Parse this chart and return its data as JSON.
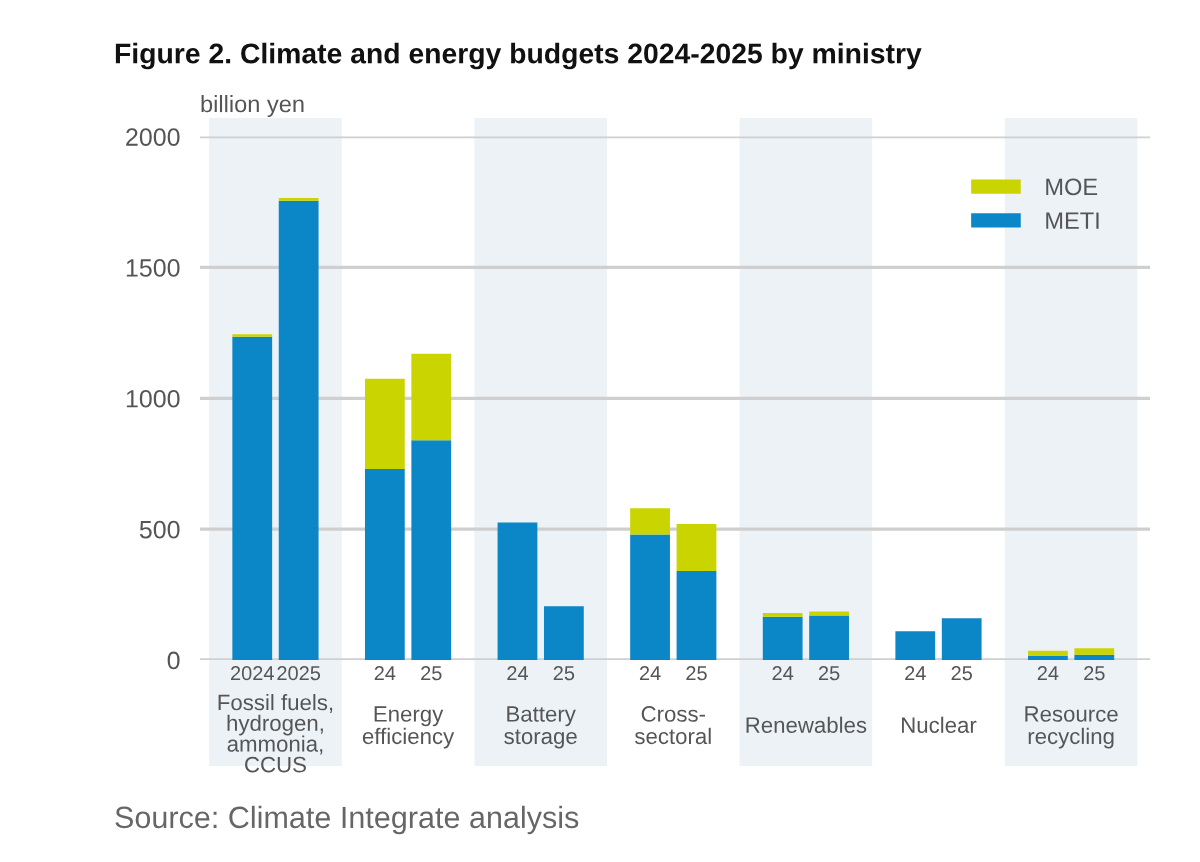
{
  "chart_data": {
    "type": "bar",
    "title": "Figure 2. Climate and energy budgets 2024-2025 by ministry",
    "ylabel": "billion yen",
    "categories": [
      "2024",
      "2025",
      "24",
      "25",
      "24",
      "25",
      "24",
      "25",
      "24",
      "25",
      "24",
      "25",
      "24",
      "25"
    ],
    "series": [
      {
        "name": "METI",
        "color": "#0b86c7",
        "values": [
          1235,
          1755,
          730,
          840,
          525,
          205,
          480,
          340,
          165,
          170,
          110,
          160,
          15,
          20
        ]
      },
      {
        "name": "MOE",
        "color": "#c9d400",
        "values": [
          10,
          10,
          345,
          330,
          0,
          0,
          100,
          180,
          15,
          15,
          0,
          0,
          20,
          25
        ]
      }
    ],
    "stacked": true,
    "ylim": [
      0,
      2000
    ],
    "yticks": [
      0,
      500,
      1000,
      1500,
      2000
    ],
    "grid": "y",
    "legend": "top right",
    "annotations": [
      "Fossil fuels,\nhydrogen,\nammonia,\nCCUS",
      "Energy\nefficiency",
      "Battery\nstorage",
      "Cross-\nsectoral",
      "Renewables",
      "Nuclear",
      "Resource\nrecycling",
      "Source: Climate Integrate analysis"
    ]
  }
}
